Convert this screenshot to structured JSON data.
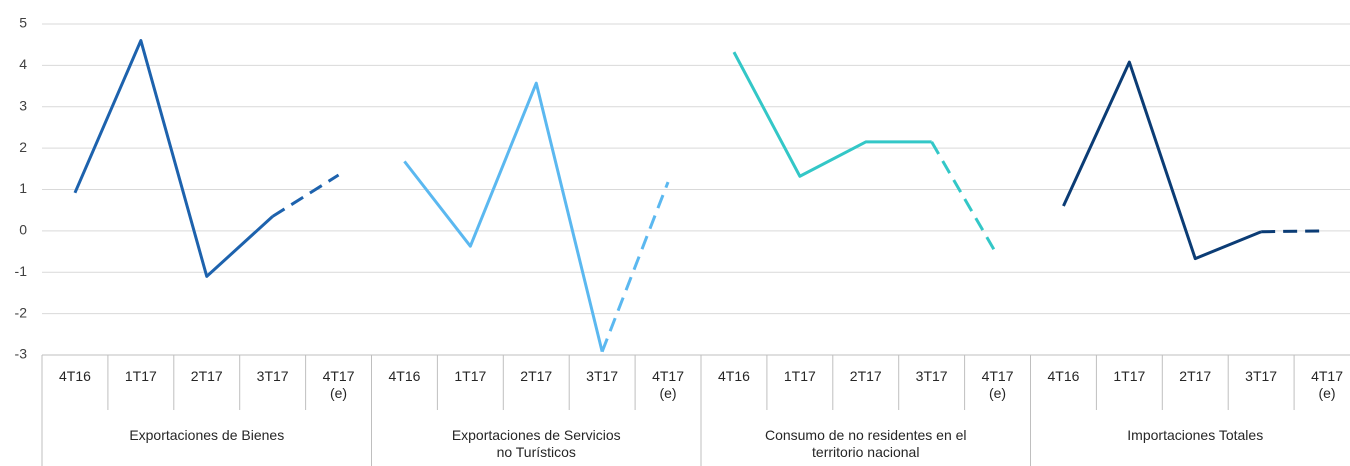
{
  "chart_data": {
    "type": "line",
    "ylim": [
      -3,
      5
    ],
    "yticks": [
      -3,
      -2,
      -1,
      0,
      1,
      2,
      3,
      4,
      5
    ],
    "grid": true,
    "dashed_last_segment": true,
    "series": [
      {
        "name": "Exportaciones de Bienes",
        "color": "#1d62ad",
        "categories": [
          "4T16",
          "1T17",
          "2T17",
          "3T17",
          "4T17\n(e)"
        ],
        "values": [
          0.92,
          4.6,
          -1.1,
          0.35,
          1.35
        ]
      },
      {
        "name": "Exportaciones de Servicios\nno Turísticos",
        "color": "#5bb8f0",
        "categories": [
          "4T16",
          "1T17",
          "2T17",
          "3T17",
          "4T17\n(e)"
        ],
        "values": [
          1.68,
          -0.37,
          3.57,
          -2.92,
          1.18
        ]
      },
      {
        "name": "Consumo de no residentes en el\nterritorio nacional",
        "color": "#33c7c7",
        "categories": [
          "4T16",
          "1T17",
          "2T17",
          "3T17",
          "4T17\n(e)"
        ],
        "values": [
          4.32,
          1.32,
          2.15,
          2.15,
          -0.6
        ]
      },
      {
        "name": "Importaciones Totales",
        "color": "#0b3c75",
        "categories": [
          "4T16",
          "1T17",
          "2T17",
          "3T17",
          "4T17\n(e)"
        ],
        "values": [
          0.6,
          4.08,
          -0.67,
          -0.02,
          0.0
        ]
      }
    ]
  }
}
